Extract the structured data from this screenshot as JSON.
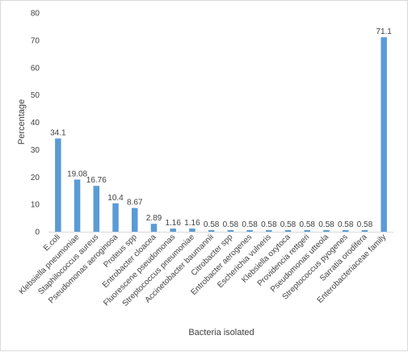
{
  "chart_data": {
    "type": "bar",
    "xlabel": "Bacteria isolated",
    "ylabel": "Percentage",
    "ylim": [
      0,
      80
    ],
    "yticks": [
      0,
      10,
      20,
      30,
      40,
      50,
      60,
      70,
      80
    ],
    "grid": false,
    "legend": "none",
    "bar_color": "#5B9BD5",
    "categories": [
      "E.coli",
      "Klebsiella pneumoniae",
      "Staphilococcus aureus",
      "Pseudomonas aeroginosa",
      "Proteus spp",
      "Entrobacter cloacea",
      "Fluorescene pseudomonas",
      "Streptococcus pneumoniae",
      "Accinetobacter baumannii",
      "Citrobacter spp",
      "Entrobacter aerogenes",
      "Escherichia vulneris",
      "Klebsiella oxytoca",
      "Providencia rettgeri",
      "Pseudomonas uttеola",
      "Streptococcus pyogenes",
      "Sarratia orodifera",
      "Enterobacteriaceae family"
    ],
    "values": [
      34.1,
      19.08,
      16.76,
      10.4,
      8.67,
      2.89,
      1.16,
      1.16,
      0.58,
      0.58,
      0.58,
      0.58,
      0.58,
      0.58,
      0.58,
      0.58,
      0.58,
      71.1
    ],
    "data_labels": [
      "34.1",
      "19.08",
      "16.76",
      "10.4",
      "8.67",
      "2.89",
      "1.16",
      "1.16",
      "0.58",
      "0.58",
      "0.58",
      "0.58",
      "0.58",
      "0.58",
      "0.58",
      "0.58",
      "0.58",
      "71.1"
    ]
  }
}
